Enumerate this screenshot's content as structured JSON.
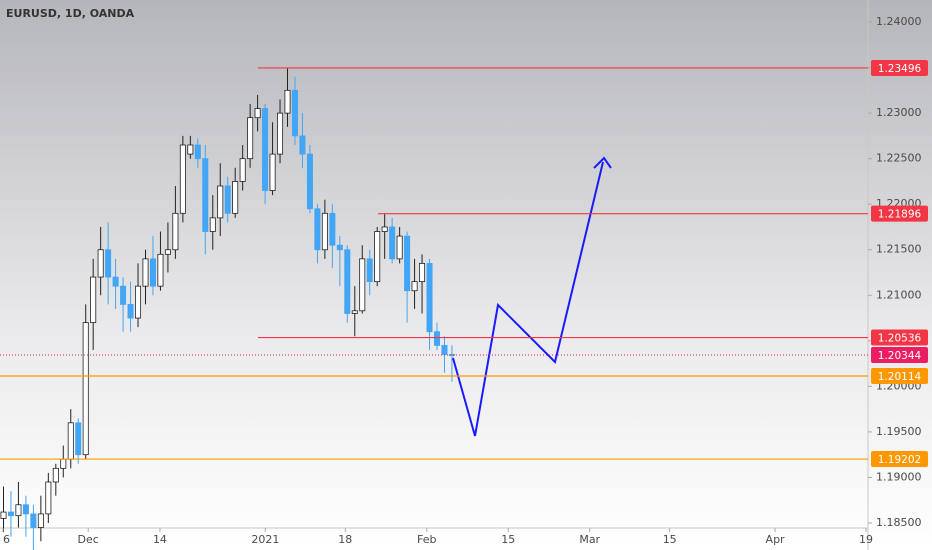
{
  "chart_data": {
    "type": "candlestick",
    "title": "EURUSD, 1D, OANDA",
    "open": [
      1.1855,
      1.1862,
      1.1858,
      1.187,
      1.186,
      1.1845,
      1.186,
      1.1895,
      1.191,
      1.192,
      1.196,
      1.1925,
      1.207,
      1.212,
      1.215,
      1.212,
      1.211,
      1.209,
      1.2075,
      1.211,
      1.214,
      1.211,
      1.2145,
      1.215,
      1.219,
      1.2255,
      1.2265,
      1.225,
      1.217,
      1.2185,
      1.222,
      1.219,
      1.2225,
      1.225,
      1.2295,
      1.2305,
      1.2215,
      1.2255,
      1.23,
      1.2325,
      1.2275,
      1.2255,
      1.2195,
      1.215,
      1.219,
      1.2155,
      1.215,
      1.208,
      1.2083,
      1.214,
      1.2115,
      1.217,
      1.2175,
      1.214,
      1.2165,
      1.2105,
      1.2115,
      1.2135,
      1.206,
      1.2045,
      1.2035
    ],
    "high": [
      1.189,
      1.1885,
      1.1895,
      1.188,
      1.187,
      1.188,
      1.1905,
      1.1915,
      1.1935,
      1.1975,
      1.1965,
      1.209,
      1.214,
      1.2175,
      1.218,
      1.214,
      1.212,
      1.2115,
      1.2135,
      1.215,
      1.2165,
      1.217,
      1.218,
      1.222,
      1.2275,
      1.2275,
      1.2272,
      1.2265,
      1.221,
      1.2245,
      1.223,
      1.224,
      1.2265,
      1.231,
      1.232,
      1.231,
      1.229,
      1.2315,
      1.235,
      1.234,
      1.23,
      1.2265,
      1.22,
      1.2205,
      1.22,
      1.2165,
      1.2155,
      1.211,
      1.2155,
      1.215,
      1.2175,
      1.219,
      1.2185,
      1.2175,
      1.217,
      1.214,
      1.2145,
      1.214,
      1.207,
      1.2055,
      1.2045
    ],
    "low": [
      1.184,
      1.1835,
      1.1845,
      1.1835,
      1.182,
      1.183,
      1.185,
      1.188,
      1.19,
      1.191,
      1.1915,
      1.192,
      1.204,
      1.21,
      1.209,
      1.2085,
      1.206,
      1.206,
      1.2065,
      1.209,
      1.21,
      1.2105,
      1.2125,
      1.214,
      1.218,
      1.225,
      1.224,
      1.2145,
      1.215,
      1.2165,
      1.218,
      1.2185,
      1.2215,
      1.224,
      1.228,
      1.22,
      1.221,
      1.2245,
      1.2285,
      1.2265,
      1.224,
      1.219,
      1.2135,
      1.214,
      1.213,
      1.211,
      1.207,
      1.2055,
      1.208,
      1.21,
      1.211,
      1.214,
      1.2135,
      1.2135,
      1.207,
      1.2085,
      1.208,
      1.204,
      1.204,
      1.2015,
      1.2005
    ],
    "close": [
      1.1862,
      1.1858,
      1.187,
      1.186,
      1.1845,
      1.186,
      1.1895,
      1.191,
      1.192,
      1.196,
      1.1925,
      1.207,
      1.212,
      1.215,
      1.212,
      1.211,
      1.209,
      1.2075,
      1.211,
      1.214,
      1.211,
      1.2145,
      1.215,
      1.219,
      1.2265,
      1.2265,
      1.225,
      1.217,
      1.2185,
      1.222,
      1.219,
      1.2225,
      1.225,
      1.2295,
      1.2305,
      1.2215,
      1.2255,
      1.23,
      1.2325,
      1.2275,
      1.2255,
      1.2195,
      1.215,
      1.219,
      1.2155,
      1.215,
      1.208,
      1.2083,
      1.214,
      1.2115,
      1.217,
      1.2175,
      1.214,
      1.2165,
      1.2105,
      1.2115,
      1.2135,
      1.206,
      1.2045,
      1.2035,
      1.2034
    ],
    "up_color": "#ffffff",
    "down_color": "#42a5f5",
    "xlim": [
      -0.4,
      116
    ],
    "xticks": [
      {
        "value": 0,
        "label": "6"
      },
      {
        "value": 11.4,
        "label": "Dec"
      },
      {
        "value": 21,
        "label": "14"
      },
      {
        "value": 35.1,
        "label": "2021"
      },
      {
        "value": 45.8,
        "label": "18"
      },
      {
        "value": 56.7,
        "label": "Feb"
      },
      {
        "value": 67.6,
        "label": "15"
      },
      {
        "value": 78.5,
        "label": "Mar"
      },
      {
        "value": 89.2,
        "label": "15"
      },
      {
        "value": 103.3,
        "label": "Apr"
      },
      {
        "value": 116,
        "label": "19"
      }
    ],
    "ylim": [
      1.18445,
      1.24242
    ],
    "yticks": [
      {
        "value": 1.185,
        "label": "1.18500"
      },
      {
        "value": 1.19,
        "label": "1.19000"
      },
      {
        "value": 1.195,
        "label": "1.19500"
      },
      {
        "value": 1.2,
        "label": "1.20000"
      },
      {
        "value": 1.205,
        "label": "1.20500"
      },
      {
        "value": 1.21,
        "label": "1.21000"
      },
      {
        "value": 1.215,
        "label": "1.21500"
      },
      {
        "value": 1.22,
        "label": "1.22000"
      },
      {
        "value": 1.225,
        "label": "1.22500"
      },
      {
        "value": 1.23,
        "label": "1.23000"
      },
      {
        "value": 1.235,
        "label": "1.23500"
      },
      {
        "value": 1.24,
        "label": "1.24000"
      }
    ],
    "levels": [
      {
        "value": 1.23496,
        "color": "#f23645"
      },
      {
        "value": 1.21896,
        "color": "#f23645"
      },
      {
        "value": 1.20536,
        "color": "#f23645"
      },
      {
        "value": 1.20114,
        "color": "#ff9800"
      },
      {
        "value": 1.19202,
        "color": "#ff9800"
      }
    ],
    "last_price": {
      "value": 1.20344,
      "color": "#e91e63"
    }
  }
}
